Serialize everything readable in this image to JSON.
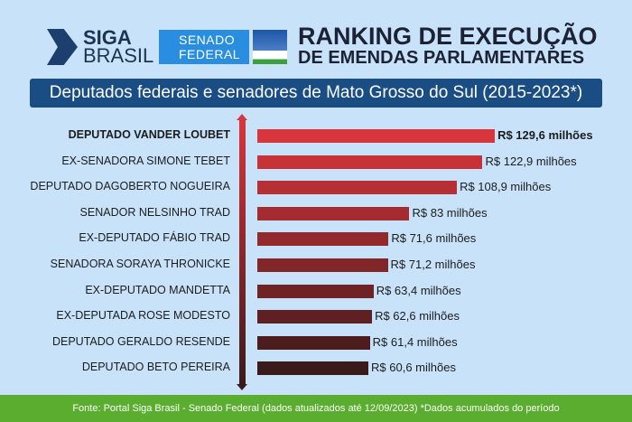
{
  "header": {
    "logo_siga_1": "SIGA",
    "logo_siga_2": "BRASIL",
    "logo_senado_1": "SENADO",
    "logo_senado_2": "FEDERAL",
    "title_1": "RANKING DE EXECUÇÃO",
    "title_2": "DE EMENDAS PARLAMENTARES"
  },
  "chart_data": {
    "type": "bar",
    "orientation": "horizontal",
    "title": "Deputados federais e senadores de Mato Grosso do Sul (2015-2023*)",
    "categories": [
      "DEPUTADO VANDER LOUBET",
      "EX-SENADORA SIMONE TEBET",
      "DEPUTADO DAGOBERTO NOGUEIRA",
      "SENADOR NELSINHO TRAD",
      "EX-DEPUTADO FÁBIO TRAD",
      "SENADORA SORAYA THRONICKE",
      "EX-DEPUTADO MANDETTA",
      "EX-DEPUTADA ROSE MODESTO",
      "DEPUTADO GERALDO RESENDE",
      "DEPUTADO BETO PEREIRA"
    ],
    "values": [
      129.6,
      122.9,
      108.9,
      83,
      71.6,
      71.2,
      63.4,
      62.6,
      61.4,
      60.6
    ],
    "value_labels": [
      "R$ 129,6 milhões",
      "R$ 122,9 milhões",
      "R$ 108,9 milhões",
      "R$ 83 milhões",
      "R$ 71,6 milhões",
      "R$ 71,2 milhões",
      "R$ 63,4 milhões",
      "R$ 62,6 milhões",
      "R$ 61,4 milhões",
      "R$ 60,6 milhões"
    ],
    "unit": "R$ milhões",
    "colors": {
      "top": "#d9353c",
      "bottom": "#3b1a1a"
    }
  },
  "footer": "Fonte: Portal Siga Brasil - Senado Federal (dados atualizados até 12/09/2023) *Dados acumulados do período"
}
